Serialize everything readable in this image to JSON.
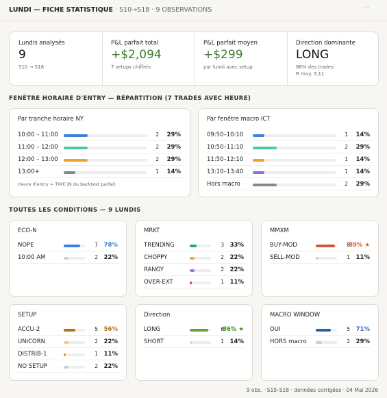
{
  "header": {
    "title": "LUNDI — FICHE STATISTIQUE",
    "subtitle": "· S10→S18 · 9 OBSERVATIONS",
    "menu": "···"
  },
  "kpis": [
    {
      "label": "Lundis analysés",
      "value": "9",
      "notes": [
        "S10 → S18"
      ],
      "color": "#111111"
    },
    {
      "label": "P&L parfait total",
      "value": "+$2,094",
      "notes": [
        "7 setups chiffrés"
      ],
      "color": "#3a7d2c"
    },
    {
      "label": "P&L parfait moyen",
      "value": "+$299",
      "notes": [
        "par lundi avec setup"
      ],
      "color": "#3a7d2c"
    },
    {
      "label": "Direction dominante",
      "value": "LONG",
      "notes": [
        "86% des trades",
        "R moy. 3.11"
      ],
      "color": "#111111"
    }
  ],
  "section_entry": {
    "title": "FENÊTRE HORAIRE D'ENTRY — RÉPARTITION (7 TRADES AVEC HEURE)",
    "cards": [
      {
        "title": "Par tranche horaire NY",
        "rows": [
          {
            "label": "10:00 – 11:00",
            "color": "#3b82d6",
            "count": 2,
            "pct": {
              "value": 29,
              "label": "29%"
            }
          },
          {
            "label": "11:00 – 12:00",
            "color": "#4fc9a0",
            "count": 2,
            "pct": {
              "value": 29,
              "label": "29%"
            }
          },
          {
            "label": "12:00 – 13:00",
            "color": "#f0a030",
            "count": 2,
            "pct": {
              "value": 29,
              "label": "29%"
            }
          },
          {
            "label": "13:00+",
            "color": "#888888",
            "count": 1,
            "pct": {
              "value": 14,
              "label": "14%"
            }
          }
        ],
        "footnote": "Heure d'entry = TIME IN du backtest parfait"
      },
      {
        "title": "Par fenêtre macro ICT",
        "rows": [
          {
            "label": "09:50–10:10",
            "color": "#3b82d6",
            "count": 1,
            "pct": {
              "value": 14,
              "label": "14%"
            }
          },
          {
            "label": "10:50–11:10",
            "color": "#4fc9a0",
            "count": 2,
            "pct": {
              "value": 29,
              "label": "29%"
            }
          },
          {
            "label": "11:50–12:10",
            "color": "#f0a030",
            "count": 1,
            "pct": {
              "value": 14,
              "label": "14%"
            }
          },
          {
            "label": "13:10–13:40",
            "color": "#8a70d6",
            "count": 1,
            "pct": {
              "value": 14,
              "label": "14%"
            }
          },
          {
            "label": "Hors macro",
            "color": "#888888",
            "count": 2,
            "pct": {
              "value": 29,
              "label": "29%"
            }
          }
        ]
      }
    ]
  },
  "section_conditions": {
    "title": "TOUTES LES CONDITIONS — 9 LUNDIS",
    "cards": [
      {
        "title": "ECO-N",
        "rows": [
          {
            "label": "NOPE",
            "color": "#3b82d6",
            "count": 7,
            "pct": {
              "value": 78,
              "label": "78%"
            },
            "pct_color": "#3b82d6"
          },
          {
            "label": "10:00 AM",
            "color": "#b8d4f0",
            "count": 2,
            "pct": {
              "value": 22,
              "label": "22%"
            }
          }
        ]
      },
      {
        "title": "MRKT",
        "rows": [
          {
            "label": "TRENDING",
            "color": "#2aa876",
            "count": 3,
            "pct": {
              "value": 33,
              "label": "33%"
            }
          },
          {
            "label": "CHOPPY",
            "color": "#f0a830",
            "count": 2,
            "pct": {
              "value": 22,
              "label": "22%"
            }
          },
          {
            "label": "RANGY",
            "color": "#9a7ce0",
            "count": 2,
            "pct": {
              "value": 22,
              "label": "22%"
            }
          },
          {
            "label": "OVER-EXT",
            "color": "#e04040",
            "count": 1,
            "pct": {
              "value": 11,
              "label": "11%"
            }
          }
        ]
      },
      {
        "title": "MMXM",
        "rows": [
          {
            "label": "BUY-MOD",
            "color": "#d0583a",
            "count": 8,
            "pct": {
              "value": 89,
              "label": "89% ★"
            },
            "pct_color": "#d0583a"
          },
          {
            "label": "SELL-MOD",
            "color": "#f4b8a8",
            "count": 1,
            "pct": {
              "value": 11,
              "label": "11%"
            }
          }
        ]
      },
      {
        "title": "SETUP",
        "rows": [
          {
            "label": "ACCU-2",
            "color": "#b07420",
            "count": 5,
            "pct": {
              "value": 56,
              "label": "56%"
            },
            "pct_color": "#b07420"
          },
          {
            "label": "UNICORN",
            "color": "#f5c890",
            "count": 2,
            "pct": {
              "value": 22,
              "label": "22%"
            }
          },
          {
            "label": "DISTRIB-1",
            "color": "#f08c30",
            "count": 1,
            "pct": {
              "value": 11,
              "label": "11%"
            }
          },
          {
            "label": "NO SETUP",
            "color": "#cccccc",
            "count": 2,
            "pct": {
              "value": 22,
              "label": "22%"
            }
          }
        ]
      },
      {
        "title": "Direction",
        "rows": [
          {
            "label": "LONG",
            "color": "#6aa030",
            "count": 6,
            "pct": {
              "value": 86,
              "label": "86% ★"
            },
            "pct_color": "#4a8a2a"
          },
          {
            "label": "SHORT",
            "color": "#cce4a8",
            "count": 1,
            "pct": {
              "value": 14,
              "label": "14%"
            }
          }
        ]
      },
      {
        "title": "MACRO WINDOW",
        "rows": [
          {
            "label": "OUI",
            "color": "#2a5fa8",
            "count": 5,
            "pct": {
              "value": 71,
              "label": "71%"
            },
            "pct_color": "#3b6fb8"
          },
          {
            "label": "HORS macro",
            "color": "#b8d4f0",
            "count": 2,
            "pct": {
              "value": 29,
              "label": "29%"
            }
          }
        ]
      }
    ]
  },
  "footer": "9 obs. · S10–S18 · données corrigées · 04 Mai 2026"
}
